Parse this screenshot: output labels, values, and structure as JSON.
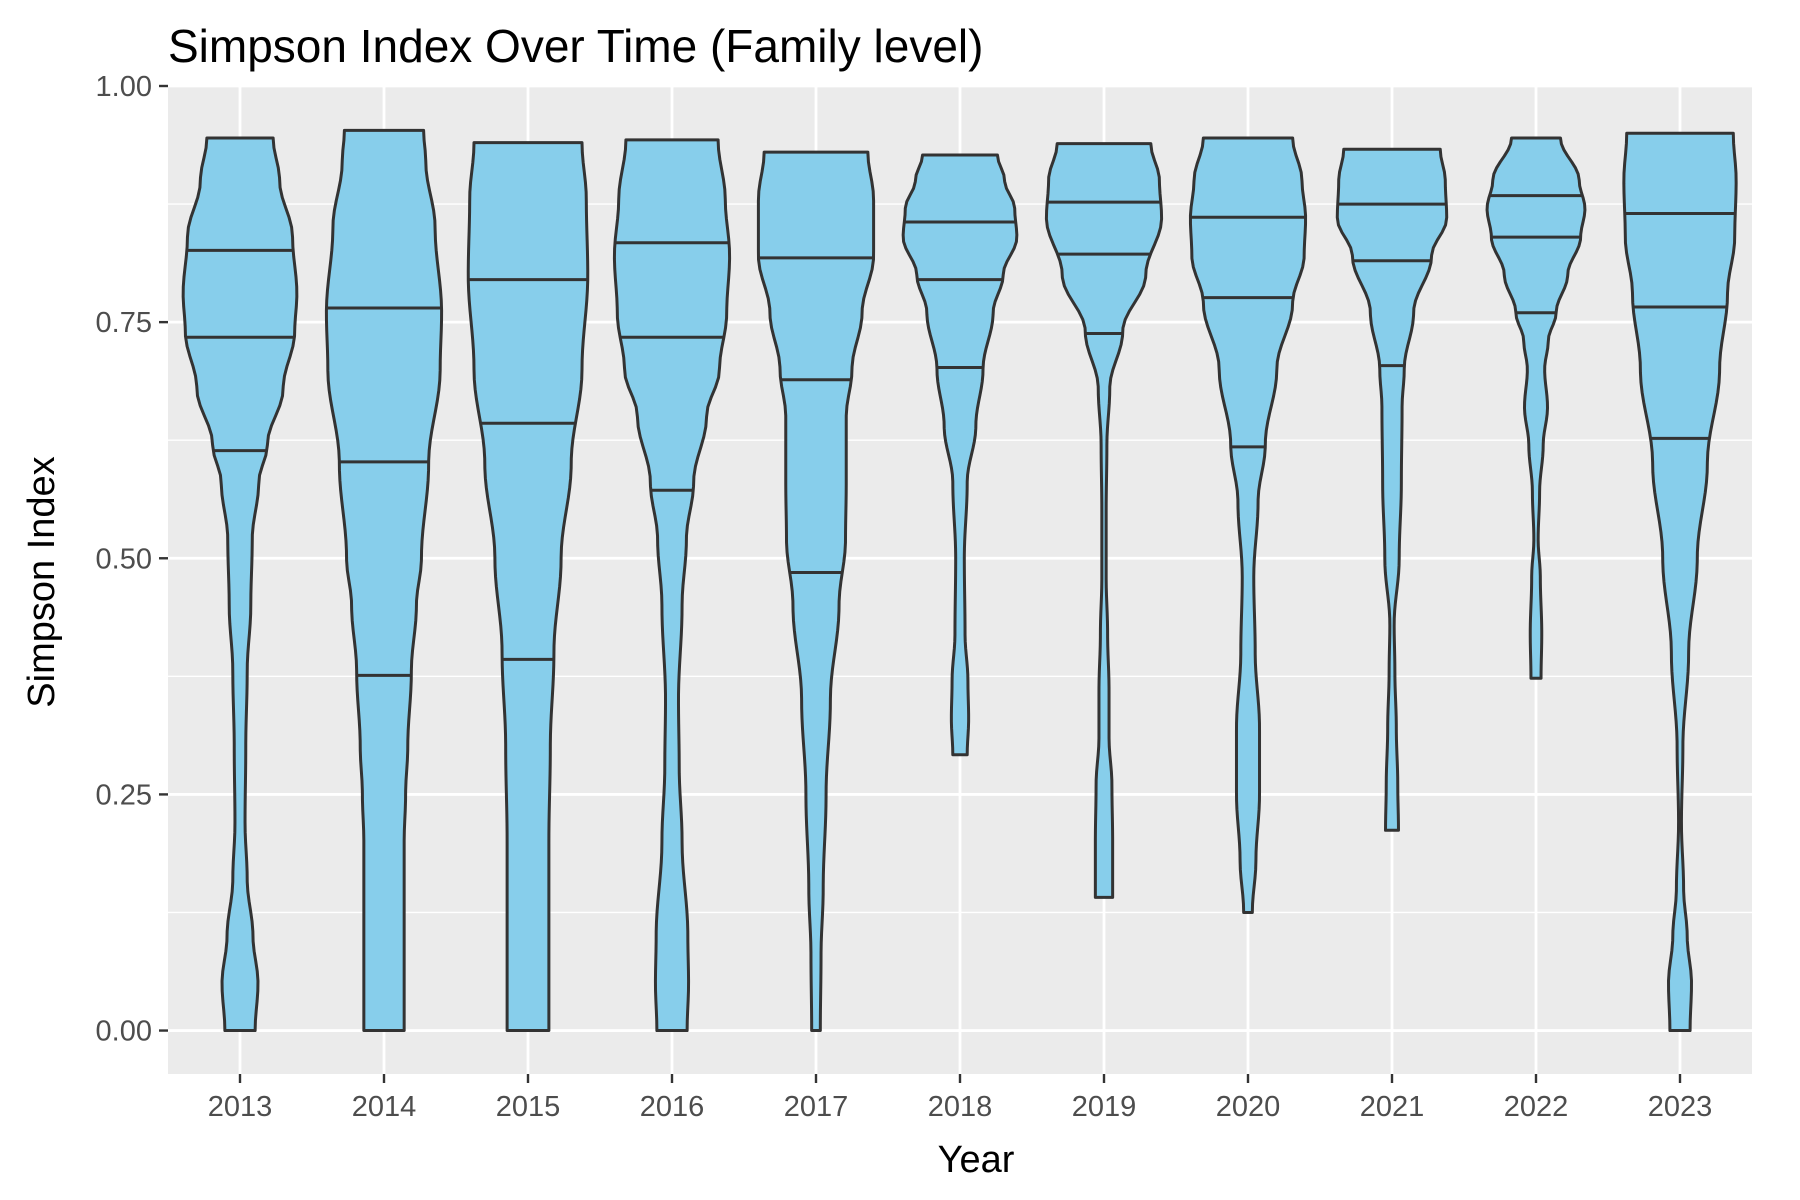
{
  "chart_data": {
    "type": "violin",
    "title": "Simpson Index Over Time (Family level)",
    "xlabel": "Year",
    "ylabel": "Simpson Index",
    "ylim": [
      -0.046,
      1.0
    ],
    "yticks": [
      0.0,
      0.25,
      0.5,
      0.75,
      1.0
    ],
    "ytick_labels": [
      "0.00",
      "0.25",
      "0.50",
      "0.75",
      "1.00"
    ],
    "categories": [
      "2013",
      "2014",
      "2015",
      "2016",
      "2017",
      "2018",
      "2019",
      "2020",
      "2021",
      "2022",
      "2023"
    ],
    "draw_quantiles": [
      0.25,
      0.5,
      0.75
    ],
    "grid": true,
    "legend": "none",
    "colors": {
      "panel": "#ebebeb",
      "grid": "#ffffff",
      "fill": "#87ceeb",
      "outline": "#333333",
      "tick": "#333333"
    },
    "series": [
      {
        "category": "2013",
        "min": 0.0,
        "max": 0.945,
        "quartiles": [
          0.614,
          0.734,
          0.826
        ],
        "profile": [
          [
            0.0,
            0.21
          ],
          [
            0.05,
            0.25
          ],
          [
            0.1,
            0.18
          ],
          [
            0.16,
            0.1
          ],
          [
            0.22,
            0.07
          ],
          [
            0.3,
            0.08
          ],
          [
            0.38,
            0.1
          ],
          [
            0.45,
            0.15
          ],
          [
            0.52,
            0.17
          ],
          [
            0.58,
            0.26
          ],
          [
            0.62,
            0.38
          ],
          [
            0.68,
            0.6
          ],
          [
            0.74,
            0.76
          ],
          [
            0.78,
            0.79
          ],
          [
            0.84,
            0.73
          ],
          [
            0.9,
            0.55
          ],
          [
            0.945,
            0.46
          ]
        ]
      },
      {
        "category": "2014",
        "min": 0.0,
        "max": 0.953,
        "quartiles": [
          0.376,
          0.602,
          0.765
        ],
        "profile": [
          [
            0.0,
            0.28
          ],
          [
            0.1,
            0.28
          ],
          [
            0.2,
            0.28
          ],
          [
            0.25,
            0.3
          ],
          [
            0.3,
            0.33
          ],
          [
            0.38,
            0.38
          ],
          [
            0.45,
            0.45
          ],
          [
            0.5,
            0.52
          ],
          [
            0.6,
            0.62
          ],
          [
            0.7,
            0.78
          ],
          [
            0.76,
            0.8
          ],
          [
            0.85,
            0.71
          ],
          [
            0.92,
            0.58
          ],
          [
            0.953,
            0.55
          ]
        ]
      },
      {
        "category": "2015",
        "min": 0.0,
        "max": 0.94,
        "quartiles": [
          0.393,
          0.643,
          0.795
        ],
        "profile": [
          [
            0.0,
            0.29
          ],
          [
            0.1,
            0.29
          ],
          [
            0.2,
            0.29
          ],
          [
            0.3,
            0.31
          ],
          [
            0.4,
            0.36
          ],
          [
            0.5,
            0.46
          ],
          [
            0.6,
            0.6
          ],
          [
            0.7,
            0.75
          ],
          [
            0.8,
            0.83
          ],
          [
            0.88,
            0.81
          ],
          [
            0.94,
            0.75
          ]
        ]
      },
      {
        "category": "2016",
        "min": 0.0,
        "max": 0.943,
        "quartiles": [
          0.572,
          0.734,
          0.834
        ],
        "profile": [
          [
            0.0,
            0.21
          ],
          [
            0.05,
            0.23
          ],
          [
            0.1,
            0.22
          ],
          [
            0.2,
            0.14
          ],
          [
            0.28,
            0.1
          ],
          [
            0.35,
            0.09
          ],
          [
            0.45,
            0.14
          ],
          [
            0.52,
            0.2
          ],
          [
            0.58,
            0.3
          ],
          [
            0.65,
            0.48
          ],
          [
            0.7,
            0.66
          ],
          [
            0.76,
            0.76
          ],
          [
            0.82,
            0.8
          ],
          [
            0.88,
            0.74
          ],
          [
            0.943,
            0.64
          ]
        ]
      },
      {
        "category": "2017",
        "min": 0.0,
        "max": 0.93,
        "quartiles": [
          0.485,
          0.689,
          0.818
        ],
        "profile": [
          [
            0.0,
            0.06
          ],
          [
            0.08,
            0.07
          ],
          [
            0.15,
            0.1
          ],
          [
            0.25,
            0.14
          ],
          [
            0.35,
            0.2
          ],
          [
            0.45,
            0.32
          ],
          [
            0.52,
            0.41
          ],
          [
            0.58,
            0.42
          ],
          [
            0.65,
            0.42
          ],
          [
            0.7,
            0.5
          ],
          [
            0.76,
            0.64
          ],
          [
            0.82,
            0.8
          ],
          [
            0.88,
            0.8
          ],
          [
            0.93,
            0.72
          ]
        ]
      },
      {
        "category": "2018",
        "min": 0.292,
        "max": 0.927,
        "quartiles": [
          0.702,
          0.795,
          0.856
        ],
        "profile": [
          [
            0.292,
            0.1
          ],
          [
            0.33,
            0.12
          ],
          [
            0.37,
            0.11
          ],
          [
            0.42,
            0.07
          ],
          [
            0.5,
            0.06
          ],
          [
            0.58,
            0.1
          ],
          [
            0.64,
            0.22
          ],
          [
            0.7,
            0.32
          ],
          [
            0.76,
            0.46
          ],
          [
            0.8,
            0.6
          ],
          [
            0.84,
            0.79
          ],
          [
            0.87,
            0.76
          ],
          [
            0.9,
            0.62
          ],
          [
            0.927,
            0.52
          ]
        ]
      },
      {
        "category": "2019",
        "min": 0.141,
        "max": 0.939,
        "quartiles": [
          0.738,
          0.822,
          0.877
        ],
        "profile": [
          [
            0.141,
            0.12
          ],
          [
            0.2,
            0.12
          ],
          [
            0.26,
            0.11
          ],
          [
            0.31,
            0.07
          ],
          [
            0.36,
            0.07
          ],
          [
            0.42,
            0.05
          ],
          [
            0.48,
            0.03
          ],
          [
            0.55,
            0.03
          ],
          [
            0.62,
            0.04
          ],
          [
            0.68,
            0.08
          ],
          [
            0.74,
            0.26
          ],
          [
            0.8,
            0.58
          ],
          [
            0.86,
            0.8
          ],
          [
            0.9,
            0.77
          ],
          [
            0.939,
            0.65
          ]
        ]
      },
      {
        "category": "2020",
        "min": 0.125,
        "max": 0.945,
        "quartiles": [
          0.618,
          0.776,
          0.861
        ],
        "profile": [
          [
            0.125,
            0.06
          ],
          [
            0.18,
            0.11
          ],
          [
            0.25,
            0.16
          ],
          [
            0.32,
            0.16
          ],
          [
            0.4,
            0.1
          ],
          [
            0.48,
            0.08
          ],
          [
            0.56,
            0.14
          ],
          [
            0.62,
            0.24
          ],
          [
            0.7,
            0.4
          ],
          [
            0.77,
            0.62
          ],
          [
            0.82,
            0.78
          ],
          [
            0.86,
            0.8
          ],
          [
            0.9,
            0.75
          ],
          [
            0.945,
            0.62
          ]
        ]
      },
      {
        "category": "2021",
        "min": 0.212,
        "max": 0.933,
        "quartiles": [
          0.704,
          0.815,
          0.875
        ],
        "profile": [
          [
            0.212,
            0.09
          ],
          [
            0.26,
            0.08
          ],
          [
            0.32,
            0.06
          ],
          [
            0.38,
            0.04
          ],
          [
            0.43,
            0.03
          ],
          [
            0.5,
            0.1
          ],
          [
            0.58,
            0.13
          ],
          [
            0.66,
            0.14
          ],
          [
            0.7,
            0.17
          ],
          [
            0.76,
            0.3
          ],
          [
            0.82,
            0.55
          ],
          [
            0.86,
            0.76
          ],
          [
            0.9,
            0.74
          ],
          [
            0.933,
            0.67
          ]
        ]
      },
      {
        "category": "2022",
        "min": 0.373,
        "max": 0.945,
        "quartiles": [
          0.76,
          0.84,
          0.884
        ],
        "profile": [
          [
            0.373,
            0.07
          ],
          [
            0.42,
            0.08
          ],
          [
            0.48,
            0.06
          ],
          [
            0.52,
            0.03
          ],
          [
            0.57,
            0.05
          ],
          [
            0.62,
            0.1
          ],
          [
            0.66,
            0.16
          ],
          [
            0.7,
            0.12
          ],
          [
            0.73,
            0.17
          ],
          [
            0.76,
            0.28
          ],
          [
            0.8,
            0.44
          ],
          [
            0.84,
            0.62
          ],
          [
            0.87,
            0.68
          ],
          [
            0.9,
            0.6
          ],
          [
            0.945,
            0.34
          ]
        ]
      },
      {
        "category": "2023",
        "min": 0.0,
        "max": 0.95,
        "quartiles": [
          0.627,
          0.766,
          0.865
        ],
        "profile": [
          [
            0.0,
            0.14
          ],
          [
            0.05,
            0.16
          ],
          [
            0.1,
            0.1
          ],
          [
            0.15,
            0.05
          ],
          [
            0.22,
            0.02
          ],
          [
            0.3,
            0.04
          ],
          [
            0.4,
            0.12
          ],
          [
            0.5,
            0.24
          ],
          [
            0.6,
            0.38
          ],
          [
            0.7,
            0.55
          ],
          [
            0.78,
            0.66
          ],
          [
            0.84,
            0.76
          ],
          [
            0.9,
            0.78
          ],
          [
            0.95,
            0.74
          ]
        ]
      }
    ]
  }
}
